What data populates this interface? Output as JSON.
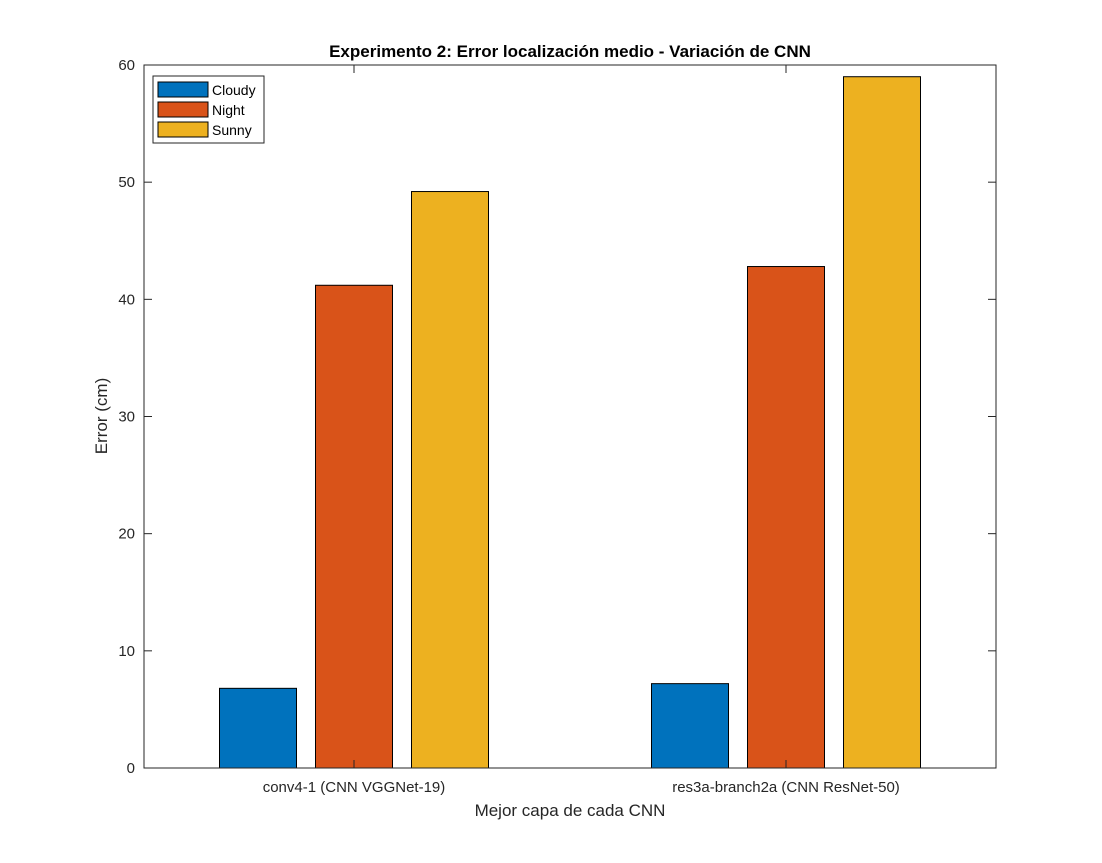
{
  "chart_data": {
    "type": "bar",
    "title": "Experimento 2: Error localización medio - Variación de CNN",
    "xlabel": "Mejor capa de cada CNN",
    "ylabel": "Error (cm)",
    "categories": [
      "conv4-1 (CNN VGGNet-19)",
      "res3a-branch2a (CNN ResNet-50)"
    ],
    "series": [
      {
        "name": "Cloudy",
        "color": "#0072BD",
        "values": [
          6.8,
          7.2
        ]
      },
      {
        "name": "Night",
        "color": "#D95319",
        "values": [
          41.2,
          42.8
        ]
      },
      {
        "name": "Sunny",
        "color": "#EDB120",
        "values": [
          49.2,
          59.0
        ]
      }
    ],
    "ylim": [
      0,
      60
    ],
    "yticks": [
      0,
      10,
      20,
      30,
      40,
      50,
      60
    ],
    "grid": false,
    "legend_position": "top-left"
  }
}
